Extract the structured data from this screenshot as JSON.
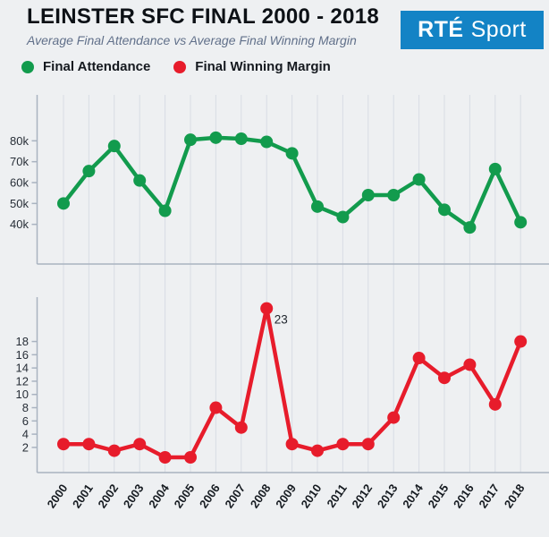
{
  "header": {
    "title": "LEINSTER SFC FINAL 2000 - 2018",
    "subtitle": "Average Final Attendance vs Average Final Winning Margin",
    "logo": {
      "brand": "RTÉ",
      "product": "Sport",
      "bg_color": "#1383c5"
    }
  },
  "legend": [
    {
      "label": "Final Attendance",
      "color": "#129b4d"
    },
    {
      "label": "Final Winning Margin",
      "color": "#e71c2b"
    }
  ],
  "colors": {
    "background": "#eef0f2",
    "grid": "#d8dde4",
    "axis": "#a9b3c0",
    "tick_text": "#272e37",
    "year_text": "#161b21",
    "annotation_text": "#20262e",
    "attendance_green": "#129b4d",
    "margin_red": "#e71c2b"
  },
  "chart_data": [
    {
      "type": "line",
      "name": "Final Attendance",
      "color": "#129b4d",
      "categories": [
        2000,
        2001,
        2002,
        2003,
        2004,
        2005,
        2006,
        2007,
        2008,
        2009,
        2010,
        2011,
        2012,
        2013,
        2014,
        2015,
        2016,
        2017,
        2018
      ],
      "values": [
        50000,
        65500,
        77500,
        61000,
        46500,
        80500,
        81500,
        81000,
        79500,
        74000,
        48500,
        43500,
        54000,
        54000,
        61500,
        47000,
        38500,
        66500,
        41000
      ],
      "ylim": [
        21000,
        102000
      ],
      "yticks": [
        {
          "value": 80000,
          "label": "80k"
        },
        {
          "value": 70000,
          "label": "70k"
        },
        {
          "value": 60000,
          "label": "60k"
        },
        {
          "value": 50000,
          "label": "50k"
        },
        {
          "value": 40000,
          "label": "40k"
        }
      ],
      "grid": "vertical",
      "legend_position": "top-left"
    },
    {
      "type": "line",
      "name": "Final Winning Margin",
      "color": "#e71c2b",
      "categories": [
        2000,
        2001,
        2002,
        2003,
        2004,
        2005,
        2006,
        2007,
        2008,
        2009,
        2010,
        2011,
        2012,
        2013,
        2014,
        2015,
        2016,
        2017,
        2018
      ],
      "values": [
        2.5,
        2.5,
        1.5,
        2.5,
        0.5,
        0.5,
        8,
        5,
        23,
        2.5,
        1.5,
        2.5,
        2.5,
        6.5,
        15.5,
        12.5,
        14.5,
        8.5,
        18
      ],
      "ylim": [
        -1.8,
        24.7
      ],
      "yticks": [
        {
          "value": 18,
          "label": "18"
        },
        {
          "value": 16,
          "label": "16"
        },
        {
          "value": 14,
          "label": "14"
        },
        {
          "value": 12,
          "label": "12"
        },
        {
          "value": 10,
          "label": "10"
        },
        {
          "value": 8,
          "label": "8"
        },
        {
          "value": 6,
          "label": "6"
        },
        {
          "value": 4,
          "label": "4"
        },
        {
          "value": 2,
          "label": "2"
        }
      ],
      "annotations": [
        {
          "category": 2008,
          "text": "23"
        }
      ],
      "grid": "vertical",
      "legend_position": "top-left"
    }
  ]
}
